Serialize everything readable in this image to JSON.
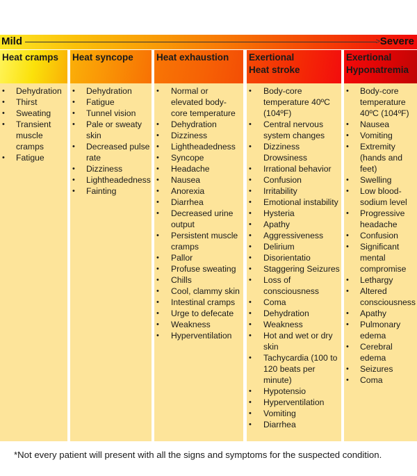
{
  "scale": {
    "left_label": "Mild",
    "right_label": "Severe",
    "gradient_colors": [
      "#fde725",
      "#f99a07",
      "#f76f05",
      "#f20a0a"
    ]
  },
  "columns": [
    {
      "title_line1": "Heat cramps",
      "title_line2": "",
      "items": [
        "Dehydration",
        "Thirst",
        "Sweating",
        "Transient muscle cramps",
        "Fatigue"
      ]
    },
    {
      "title_line1": "Heat syncope",
      "title_line2": "",
      "items": [
        "Dehydration",
        "Fatigue",
        "Tunnel vision",
        "Pale or sweaty skin",
        "Decreased pulse rate",
        "Dizziness",
        "Lightheadedness",
        "Fainting"
      ]
    },
    {
      "title_line1": "Heat exhaustion",
      "title_line2": "",
      "items": [
        "Normal or elevated body-core temperature",
        "Dehydration",
        "Dizziness",
        "Lightheadedness",
        "Syncope",
        "Headache",
        "Nausea",
        "Anorexia",
        "Diarrhea",
        "Decreased urine output",
        "Persistent muscle cramps",
        "Pallor",
        "Profuse sweating",
        "Chills",
        "Cool, clammy skin",
        "Intestinal cramps",
        "Urge to defecate",
        "Weakness",
        "Hyperventilation"
      ]
    },
    {
      "title_line1": "Exertional",
      "title_line2": "Heat stroke",
      "items": [
        "Body-core temperature 40ºC (104ºF)",
        "Central nervous system changes",
        "Dizziness Drowsiness",
        "Irrational behavior",
        "Confusion",
        "Irritability",
        "Emotional instability",
        "Hysteria",
        "Apathy",
        "Aggressiveness",
        "Delirium",
        "Disorientatio",
        "Staggering Seizures",
        "Loss of consciousness",
        "Coma",
        " Dehydration",
        "Weakness",
        "Hot and wet or dry skin",
        "Tachycardia (100 to 120 beats per minute)",
        "Hypotensio",
        "Hyperventilation",
        "Vomiting",
        "Diarrhea"
      ]
    },
    {
      "title_line1": "Exertional",
      "title_line2": "Hyponatremia",
      "items": [
        "Body-core temperature 40ºC (104ºF)",
        "Nausea",
        "Vomiting",
        "Extremity (hands and feet)",
        "Swelling",
        "Low blood-sodium level",
        "Progressive headache",
        "Confusion",
        "Significant mental compromise",
        "Lethargy",
        "Altered consciousness",
        "Apathy",
        "Pulmonary edema",
        "Cerebral edema",
        "Seizures",
        "Coma"
      ]
    }
  ],
  "footnote": "*Not every patient will present with all the signs and symptoms for the suspected condition."
}
